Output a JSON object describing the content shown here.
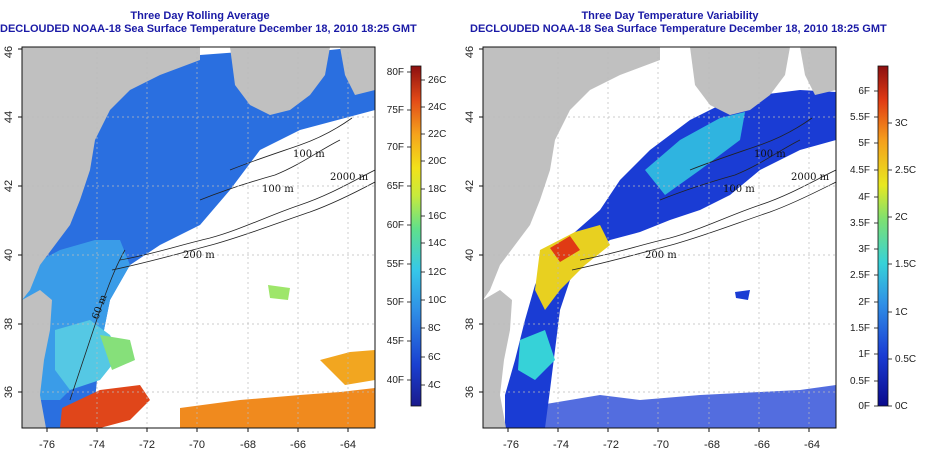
{
  "panels": [
    {
      "title_line1": "Three Day Rolling Average",
      "title_line2": "DECLOUDED NOAA-18 Sea Surface Temperature December 18, 2010 18:25 GMT",
      "colorbar": {
        "left_labels": [
          "80F",
          "75F",
          "70F",
          "65F",
          "60F",
          "55F",
          "50F",
          "45F",
          "40F"
        ],
        "right_labels": [
          "26C",
          "24C",
          "22C",
          "20C",
          "18C",
          "16C",
          "14C",
          "12C",
          "10C",
          "8C",
          "6C",
          "4C"
        ]
      }
    },
    {
      "title_line1": "Three Day Temperature Variability",
      "title_line2": "DECLOUDED NOAA-18 Sea Surface Temperature December 18, 2010 18:25 GMT",
      "colorbar": {
        "left_labels": [
          "6F",
          "5.5F",
          "5F",
          "4.5F",
          "4F",
          "3.5F",
          "3F",
          "2.5F",
          "2F",
          "1.5F",
          "1F",
          "0.5F",
          "0F"
        ],
        "right_labels": [
          "3C",
          "2.5C",
          "2C",
          "1.5C",
          "1C",
          "0.5C",
          "0C"
        ]
      }
    }
  ],
  "axes": {
    "lon_ticks": [
      "-76",
      "-74",
      "-72",
      "-70",
      "-68",
      "-66",
      "-64"
    ],
    "lat_ticks": [
      "36",
      "38",
      "40",
      "42",
      "44",
      "46"
    ]
  },
  "contour_labels": [
    "100 m",
    "100 m",
    "2000 m",
    "200 m",
    "60 m"
  ],
  "colors": {
    "land": "#c0c0c0",
    "title": "#1a1aa6",
    "ocean_blank": "#ffffff"
  }
}
